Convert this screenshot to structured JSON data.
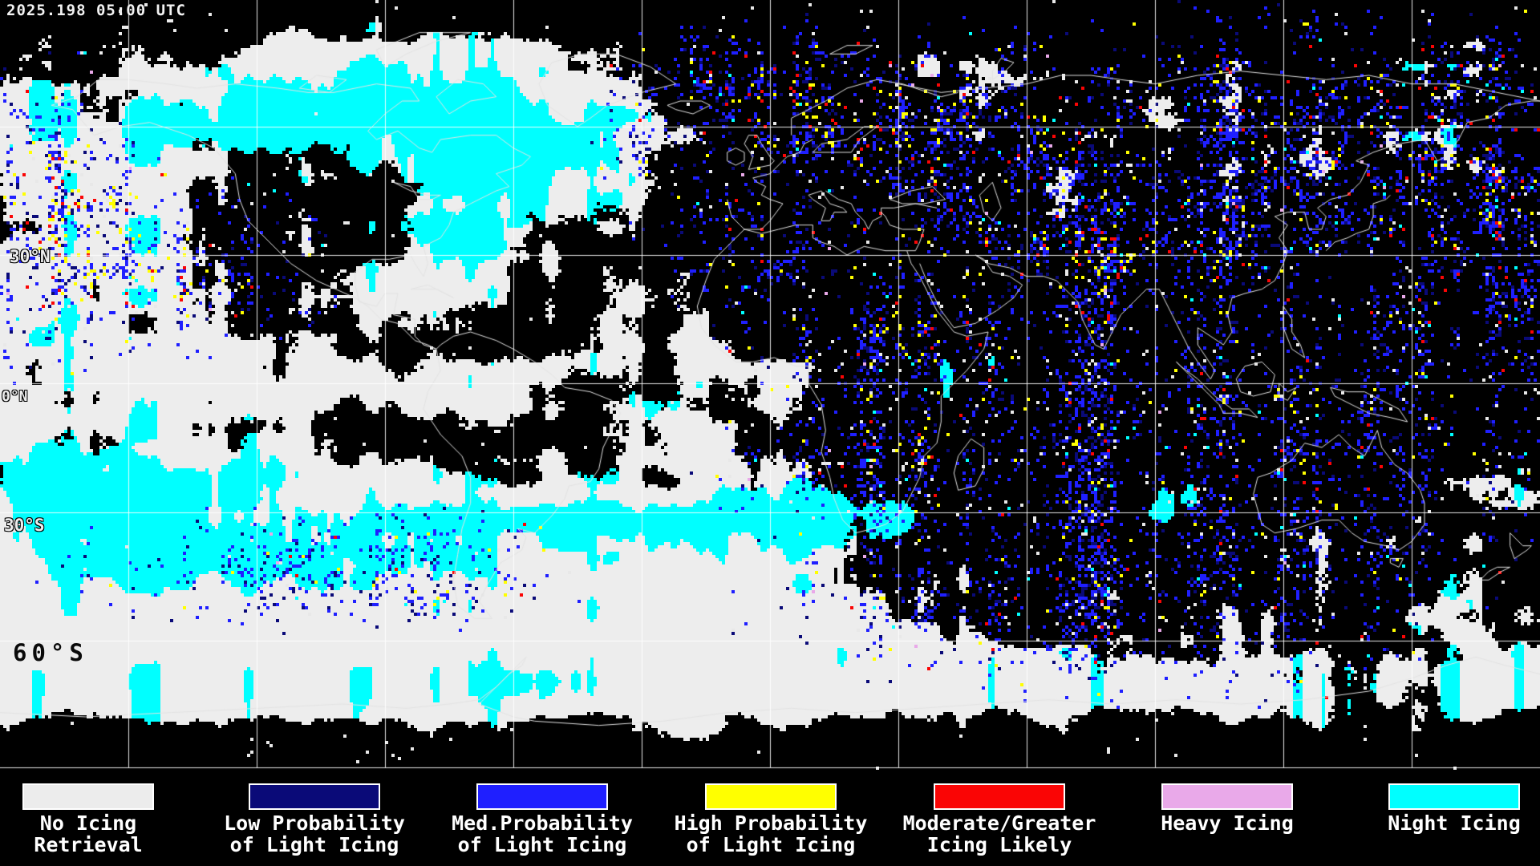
{
  "header": {
    "timestamp": "2025.198 05:00 UTC"
  },
  "map": {
    "latitude_labels": [
      {
        "text": "30°N"
      },
      {
        "text": "0°N"
      },
      {
        "text": "30°S"
      },
      {
        "text": "60°S"
      }
    ]
  },
  "palette": {
    "background": "#000000",
    "grid_line": "#FFFFFF",
    "coastline": "#E2E2E2",
    "cloud_white": "#EDEDED",
    "no_icing": "#ECECEC",
    "low_prob": "#0A0A78",
    "med_prob": "#1F1FFF",
    "high_prob": "#FFFF00",
    "moderate_greater": "#FA0505",
    "heavy": "#E9A9E9",
    "night": "#00FFFF"
  },
  "legend": {
    "items": [
      {
        "name": "no-icing-retrieval",
        "color": "#ECECEC",
        "line1": "No Icing",
        "line2": "Retrieval"
      },
      {
        "name": "low-prob-light-icing",
        "color": "#0A0A78",
        "line1": "Low Probability",
        "line2": "of Light Icing"
      },
      {
        "name": "med-prob-light-icing",
        "color": "#1F1FFF",
        "line1": "Med.Probability",
        "line2": "of Light Icing"
      },
      {
        "name": "high-prob-light-icing",
        "color": "#FFFF00",
        "line1": "High Probability",
        "line2": "of Light Icing"
      },
      {
        "name": "moderate-greater-icing",
        "color": "#FA0505",
        "line1": "Moderate/Greater",
        "line2": "Icing Likely"
      },
      {
        "name": "heavy-icing",
        "color": "#E9A9E9",
        "line1": "Heavy Icing",
        "line2": ""
      },
      {
        "name": "night-icing",
        "color": "#00FFFF",
        "line1": "Night Icing",
        "line2": ""
      }
    ]
  }
}
